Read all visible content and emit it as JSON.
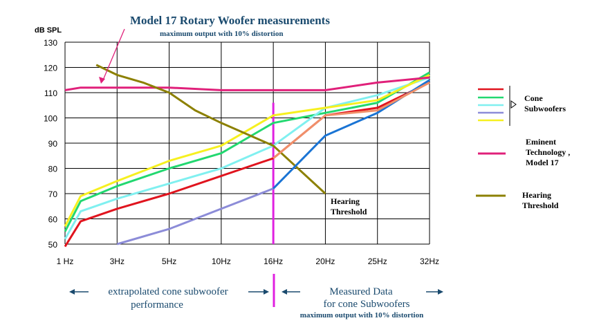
{
  "chart_data": {
    "type": "line",
    "title": "Model 17 Rotary Woofer measurements",
    "subtitle": "maximum output with 10% distortion",
    "ylabel": "dB SPL",
    "ylim": [
      50,
      130
    ],
    "yticks": [
      50,
      60,
      70,
      80,
      90,
      100,
      110,
      120,
      130
    ],
    "x_tick_labels": [
      "1 Hz",
      "3Hz",
      "5Hz",
      "10Hz",
      "16Hz",
      "20Hz",
      "25Hz",
      "32Hz"
    ],
    "grid": true,
    "series": [
      {
        "group": "Cone Subwoofers",
        "color": "#e0141e",
        "x": [
          0,
          0.3,
          1,
          2,
          3,
          4,
          5,
          6,
          7
        ],
        "y": [
          49,
          59,
          64,
          70,
          77,
          84,
          101,
          104,
          114
        ]
      },
      {
        "group": "Cone Subwoofers",
        "color": "#22d870",
        "x": [
          0,
          0.3,
          1,
          2,
          3,
          4,
          5,
          6,
          7
        ],
        "y": [
          55,
          67,
          73,
          80,
          86,
          98,
          102,
          106,
          118
        ]
      },
      {
        "group": "Cone Subwoofers",
        "color": "#80f0f0",
        "x": [
          0,
          0.3,
          1,
          2,
          3,
          4,
          5,
          6,
          7
        ],
        "y": [
          52,
          63,
          68,
          74,
          80,
          89,
          104,
          109,
          116
        ]
      },
      {
        "group": "Cone Subwoofers",
        "color": "#8c8cd8",
        "x": [
          1,
          2,
          3,
          4
        ],
        "y": [
          50,
          56,
          64,
          72
        ]
      },
      {
        "group": "Cone Subwoofers",
        "color": "#f6f020",
        "x": [
          0,
          0.3,
          1,
          2,
          3,
          4,
          5,
          6,
          7
        ],
        "y": [
          57,
          69,
          75,
          83,
          89,
          101,
          104,
          107,
          117
        ]
      },
      {
        "group": "Eminent Technology, Model 17",
        "color": "#e0207a",
        "x": [
          0,
          0.3,
          1,
          2,
          3,
          4,
          5,
          6,
          7
        ],
        "y": [
          111,
          112,
          112,
          112,
          111,
          111,
          111,
          114,
          116
        ]
      },
      {
        "group": "Hearing Threshold",
        "color": "#8c8000",
        "x": [
          0.6,
          1,
          1.5,
          2,
          2.5,
          3,
          4,
          5
        ],
        "y": [
          121,
          117,
          114,
          110,
          103,
          98,
          89,
          70
        ]
      },
      {
        "group": "Measured 16Hz-32Hz",
        "color": "#1a74d4",
        "x": [
          4,
          5,
          6,
          7
        ],
        "y": [
          72,
          93,
          102,
          115
        ]
      },
      {
        "group": "Measured 16Hz-32Hz",
        "color": "#f0906a",
        "x": [
          4,
          5,
          6,
          7
        ],
        "y": [
          84,
          101,
          103,
          114
        ]
      }
    ],
    "legend": [
      {
        "label": "Cone Subwoofers",
        "colors": [
          "#e0141e",
          "#22d870",
          "#80f0f0",
          "#8c8cd8",
          "#f6f020"
        ]
      },
      {
        "label_lines": [
          "Eminent",
          "Technology ,",
          "Model  17"
        ],
        "colors": [
          "#e0207a"
        ]
      },
      {
        "label_lines": [
          "Hearing",
          "Threshold"
        ],
        "colors": [
          "#8c8000"
        ]
      }
    ],
    "legend_placement": "right",
    "annotations": {
      "hearing_threshold": [
        "Hearing",
        "Threshold"
      ],
      "left_arrow_text": [
        "extrapolated cone subwoofer",
        "performance"
      ],
      "right_arrow_text": [
        "Measured Data",
        "for  cone  Subwoofers"
      ],
      "right_arrow_subtext": "maximum output with 10% distortion"
    },
    "colors": {
      "marker_16hz": "#e020e0",
      "arrow": "#1a4a6e",
      "title_arrow": "#e0207a"
    }
  }
}
